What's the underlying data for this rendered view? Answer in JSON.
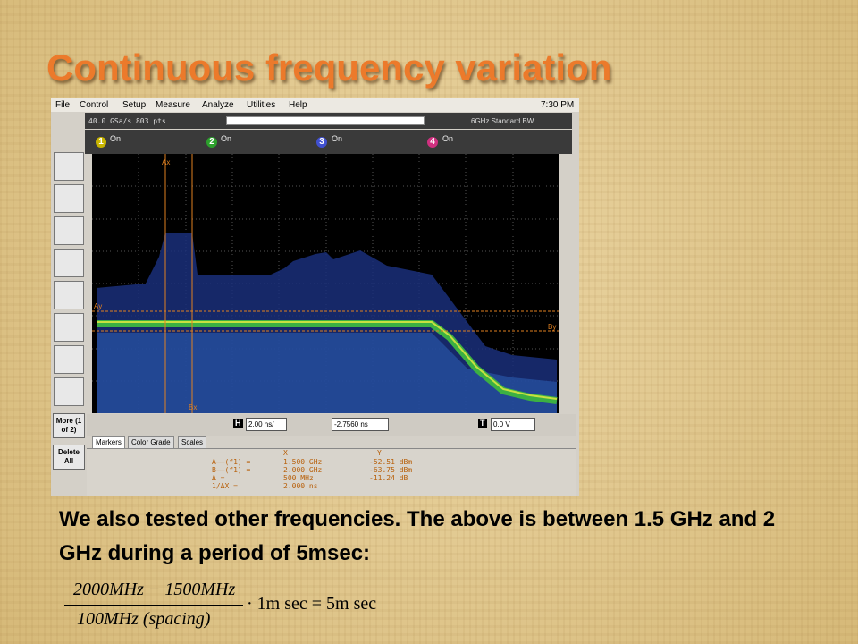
{
  "title": "Continuous frequency variation",
  "scope": {
    "menu": [
      "File",
      "Control",
      "Setup",
      "Measure",
      "Analyze",
      "Utilities",
      "Help"
    ],
    "clock": "7:30 PM",
    "acquisition": "40.0 GSa/s   803 pts",
    "bandwidth": "6GHz Standard BW",
    "channels": [
      {
        "number": "1",
        "state": "On"
      },
      {
        "number": "2",
        "state": "On"
      },
      {
        "number": "3",
        "state": "On"
      },
      {
        "number": "4",
        "state": "On"
      }
    ],
    "side_buttons": [
      "More (1 of 2)",
      "Delete All"
    ],
    "plot_markers": [
      "Ax",
      "Bx",
      "Ay",
      "By"
    ],
    "controls": {
      "timebase": "2.00 ns/",
      "delay": "-2.7560 ns",
      "trigger": "0.0 V"
    },
    "tabs": [
      "Markers",
      "Color Grade",
      "Scales"
    ],
    "markers_table": {
      "headers": [
        "X",
        "Y"
      ],
      "rows": [
        [
          "A——(f1) =",
          "1.500 GHz",
          "-52.51 dBm"
        ],
        [
          "B——(f1) =",
          "2.000 GHz",
          "-63.75 dBm"
        ],
        [
          "Δ =",
          "500 MHz",
          "-11.24 dB"
        ],
        [
          "1/ΔX =",
          "2.000 ns"
        ]
      ]
    }
  },
  "body": "We also tested other frequencies. The above is between 1.5 GHz and 2 GHz during a period of 5msec:",
  "formula": {
    "numerator": "2000MHz − 1500MHz",
    "denominator": "100MHz (spacing)",
    "rest": "· 1m sec = 5m sec"
  }
}
